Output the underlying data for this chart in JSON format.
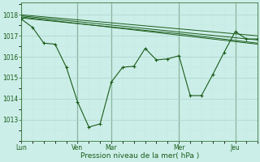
{
  "xlabel": "Pression niveau de la mer( hPa )",
  "background_color": "#cceee8",
  "grid_color_major": "#aad4cc",
  "grid_color_minor": "#c4e8e2",
  "line_color": "#1a5c1a",
  "ylim": [
    1012.4,
    1018.6
  ],
  "yticks": [
    1013,
    1014,
    1015,
    1016,
    1017,
    1018
  ],
  "day_labels": [
    "Lun",
    "Ven",
    "Mar",
    "Mer",
    "Jeu"
  ],
  "day_positions": [
    0,
    60,
    96,
    168,
    228
  ],
  "vline_positions": [
    0,
    60,
    96,
    168,
    228
  ],
  "xlim": [
    0,
    252
  ],
  "line1_x": [
    0,
    12,
    24,
    36,
    48,
    60,
    72,
    84,
    96,
    108,
    120,
    132,
    144,
    156,
    168,
    180,
    192,
    204,
    216,
    228,
    240,
    252
  ],
  "line1_y": [
    1017.8,
    1017.4,
    1016.65,
    1016.6,
    1015.5,
    1013.85,
    1012.65,
    1012.8,
    1014.8,
    1015.5,
    1015.55,
    1016.4,
    1015.85,
    1015.9,
    1016.05,
    1014.15,
    1014.15,
    1015.15,
    1016.2,
    1017.2,
    1016.85,
    1016.85
  ],
  "line2_x": [
    0,
    252
  ],
  "line2_y": [
    1017.9,
    1016.6
  ],
  "line3_x": [
    0,
    252
  ],
  "line3_y": [
    1017.95,
    1016.8
  ],
  "line4_x": [
    0,
    252
  ],
  "line4_y": [
    1018.0,
    1017.0
  ],
  "line5_x": [
    0,
    168,
    252
  ],
  "line5_y": [
    1017.85,
    1017.1,
    1016.65
  ]
}
